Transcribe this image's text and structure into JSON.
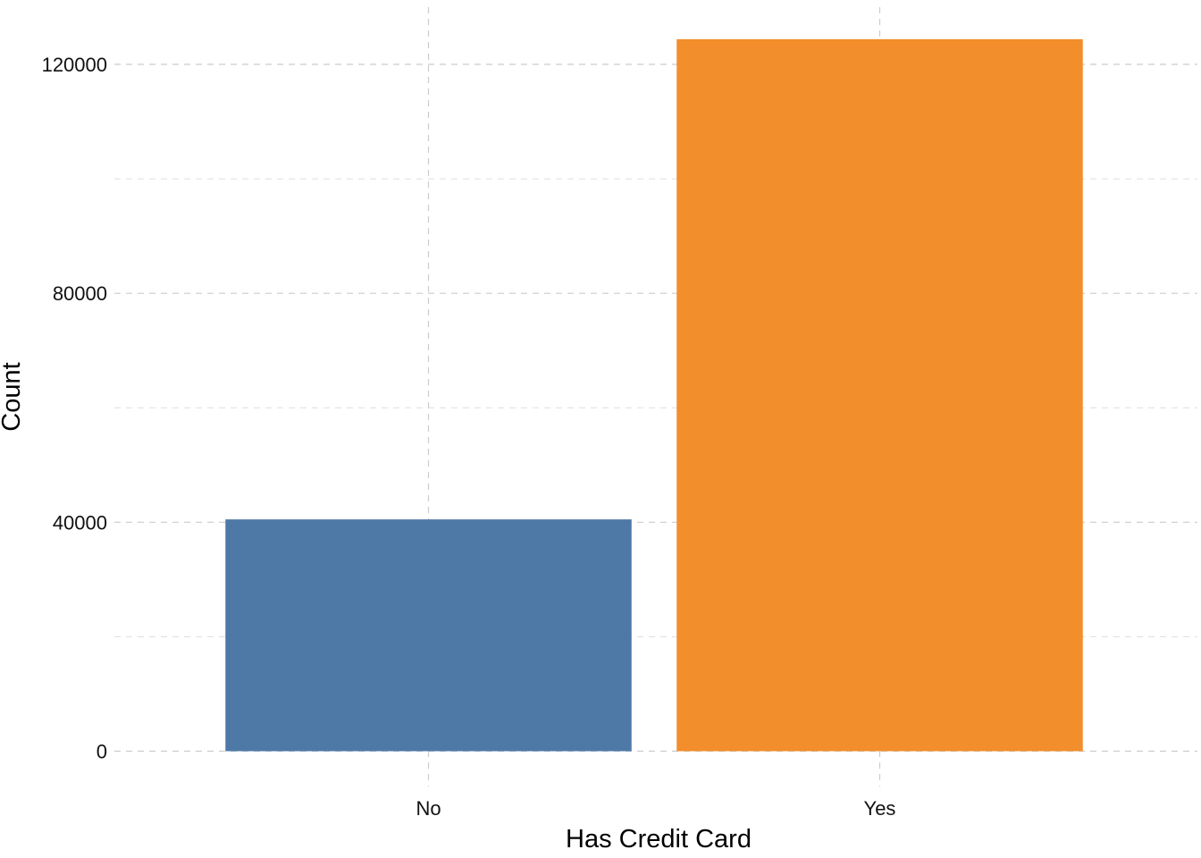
{
  "chart_data": {
    "type": "bar",
    "categories": [
      "No",
      "Yes"
    ],
    "values": [
      40500,
      124400
    ],
    "colors": [
      "#4e79a7",
      "#f28e2b"
    ],
    "title": "",
    "xlabel": "Has Credit Card",
    "ylabel": "Count",
    "ylim": [
      -5000,
      130000
    ],
    "yticks": [
      0,
      40000,
      80000,
      120000
    ],
    "yticks_minor": [
      20000,
      60000,
      100000
    ],
    "ytick_labels": [
      "0",
      "40000",
      "80000",
      "120000"
    ],
    "grid": true,
    "legend": "none"
  }
}
